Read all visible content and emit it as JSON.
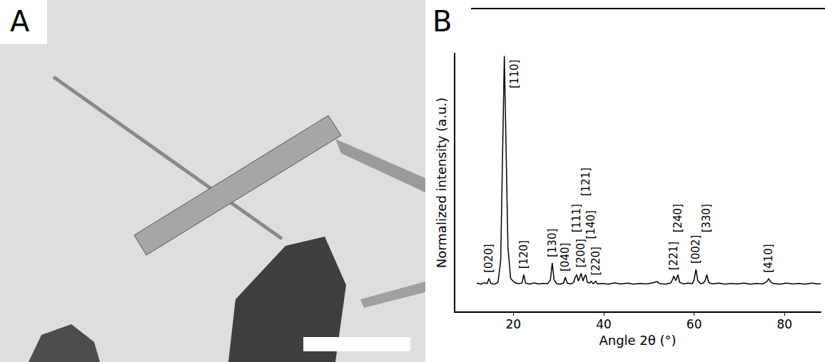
{
  "panel_a": {
    "label": "A"
  },
  "chart_data": {
    "panel_label": "B",
    "type": "line",
    "x_label": "Angle 2θ (°)",
    "y_label": "Normalized intensity (a.u.)",
    "color": "#000000",
    "xlim": [
      7,
      88
    ],
    "xticks": [
      20,
      40,
      60,
      80
    ],
    "ylim": [
      0,
      1
    ],
    "yticks": [],
    "tick_labels": "x",
    "grid": false,
    "x": [
      11.9,
      12.8,
      13.6,
      14.2,
      14.6,
      15.0,
      15.8,
      16.6,
      17.2,
      17.6,
      18.0,
      18.4,
      18.8,
      19.4,
      20.2,
      21.0,
      21.9,
      22.3,
      22.7,
      23.6,
      24.6,
      25.6,
      26.6,
      27.6,
      28.2,
      28.6,
      29.0,
      29.6,
      30.4,
      31.1,
      31.5,
      31.9,
      32.6,
      33.3,
      33.7,
      34.0,
      34.4,
      34.7,
      35.0,
      35.4,
      35.7,
      36.0,
      36.4,
      36.9,
      37.2,
      37.6,
      37.9,
      38.2,
      38.6,
      39.6,
      41.0,
      42.4,
      43.8,
      45.2,
      46.6,
      48.0,
      49.4,
      50.8,
      51.8,
      52.4,
      53.6,
      54.8,
      55.2,
      55.5,
      55.9,
      56.1,
      56.4,
      56.8,
      57.6,
      58.6,
      59.6,
      60.0,
      60.4,
      60.8,
      61.4,
      62.1,
      62.5,
      62.8,
      63.2,
      64.0,
      65.4,
      66.8,
      68.2,
      69.6,
      71.0,
      72.4,
      73.8,
      75.2,
      76.1,
      76.5,
      76.9,
      77.6,
      79.0,
      80.4,
      81.8,
      83.2,
      84.6,
      86.0,
      87.4,
      88.0
    ],
    "values": [
      0.112,
      0.108,
      0.114,
      0.11,
      0.13,
      0.111,
      0.108,
      0.115,
      0.2,
      0.6,
      0.99,
      0.62,
      0.25,
      0.13,
      0.115,
      0.11,
      0.112,
      0.145,
      0.112,
      0.108,
      0.113,
      0.109,
      0.111,
      0.11,
      0.125,
      0.19,
      0.125,
      0.11,
      0.108,
      0.113,
      0.135,
      0.112,
      0.109,
      0.114,
      0.135,
      0.145,
      0.12,
      0.135,
      0.15,
      0.12,
      0.135,
      0.145,
      0.115,
      0.112,
      0.12,
      0.11,
      0.112,
      0.12,
      0.109,
      0.111,
      0.108,
      0.113,
      0.109,
      0.112,
      0.108,
      0.111,
      0.109,
      0.113,
      0.118,
      0.11,
      0.108,
      0.112,
      0.125,
      0.14,
      0.122,
      0.128,
      0.145,
      0.115,
      0.109,
      0.112,
      0.11,
      0.125,
      0.165,
      0.122,
      0.11,
      0.113,
      0.125,
      0.145,
      0.115,
      0.109,
      0.112,
      0.108,
      0.111,
      0.109,
      0.112,
      0.108,
      0.111,
      0.109,
      0.118,
      0.13,
      0.117,
      0.11,
      0.108,
      0.112,
      0.109,
      0.111,
      0.108,
      0.112,
      0.109,
      0.11
    ],
    "annotations": [
      {
        "text": "[020]",
        "x": 14.6
      },
      {
        "text": "[110]",
        "x": 18.0
      },
      {
        "text": "[120]",
        "x": 22.3
      },
      {
        "text": "[130]",
        "x": 28.6
      },
      {
        "text": "[040]",
        "x": 31.5
      },
      {
        "text": "[111]",
        "x": 34.0
      },
      {
        "text": "[200]",
        "x": 35.0
      },
      {
        "text": "[121]",
        "x": 36.0
      },
      {
        "text": "[140]",
        "x": 37.2
      },
      {
        "text": "[220]",
        "x": 38.2
      },
      {
        "text": "[221]",
        "x": 55.5
      },
      {
        "text": "[240]",
        "x": 56.4
      },
      {
        "text": "[002]",
        "x": 60.4
      },
      {
        "text": "[330]",
        "x": 62.8
      },
      {
        "text": "[410]",
        "x": 76.5
      }
    ]
  }
}
